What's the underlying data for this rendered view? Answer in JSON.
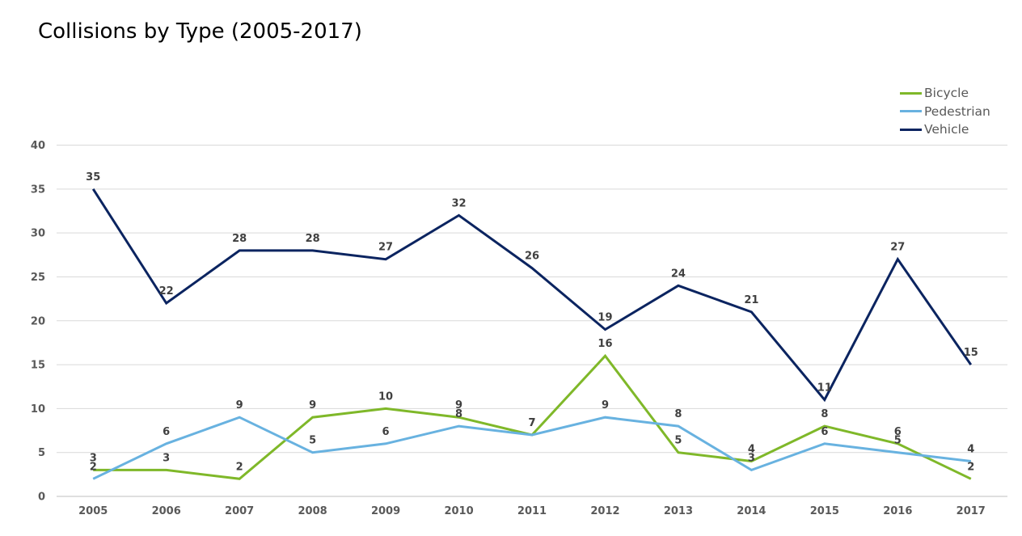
{
  "chart_data": {
    "type": "line",
    "title": "Collisions by Type (2005-2017)",
    "xlabel": "",
    "ylabel": "",
    "categories": [
      "2005",
      "2006",
      "2007",
      "2008",
      "2009",
      "2010",
      "2011",
      "2012",
      "2013",
      "2014",
      "2015",
      "2016",
      "2017"
    ],
    "ylim": [
      0,
      40
    ],
    "yticks": [
      0,
      5,
      10,
      15,
      20,
      25,
      30,
      35,
      40
    ],
    "grid": true,
    "legend_position": "top-right",
    "series": [
      {
        "name": "Bicycle",
        "color": "#7fb829",
        "values": [
          3,
          3,
          2,
          9,
          10,
          9,
          7,
          16,
          5,
          4,
          8,
          6,
          2
        ]
      },
      {
        "name": "Pedestrian",
        "color": "#68b2e0",
        "values": [
          2,
          6,
          9,
          5,
          6,
          8,
          7,
          9,
          8,
          3,
          6,
          5,
          4
        ]
      },
      {
        "name": "Vehicle",
        "color": "#0b2460",
        "values": [
          35,
          22,
          28,
          28,
          27,
          32,
          26,
          19,
          24,
          21,
          11,
          27,
          15
        ]
      }
    ]
  }
}
